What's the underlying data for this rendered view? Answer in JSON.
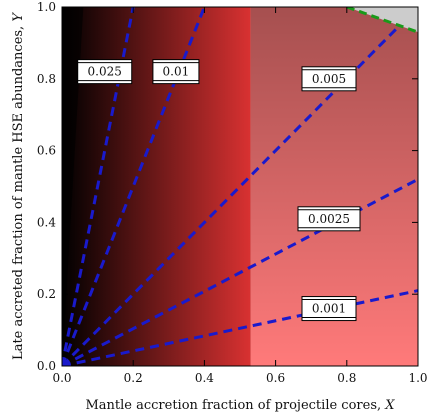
{
  "chart_data": {
    "type": "heatmap",
    "xlabel": "Mantle accretion fraction of projectile cores,",
    "xlabel_var": "X",
    "ylabel": "Late accreted fraction of mantle HSE abundances,",
    "ylabel_var": "Y",
    "xlim": [
      0.0,
      1.0
    ],
    "ylim": [
      0.0,
      1.0
    ],
    "x_ticks": [
      "0.0",
      "0.2",
      "0.4",
      "0.6",
      "0.8",
      "1.0"
    ],
    "y_ticks": [
      "0.0",
      "0.2",
      "0.4",
      "0.6",
      "0.8",
      "1.0"
    ],
    "shaded_region_x_start": 0.53,
    "contour_lines": [
      {
        "label": "0.025",
        "slope": 5.0
      },
      {
        "label": "0.01",
        "slope": 2.5
      },
      {
        "label": "0.005",
        "slope": 1.0
      },
      {
        "label": "0.0025",
        "slope": 0.52
      },
      {
        "label": "0.001",
        "slope": 0.21
      }
    ],
    "boundary_curve": {
      "style": "dashed",
      "color": "#1a9a1a",
      "points": [
        [
          0.8,
          1.0
        ],
        [
          0.9,
          0.965
        ],
        [
          1.0,
          0.93
        ]
      ]
    },
    "excluded_region_color": "#cccccc",
    "contour_color": "#1a1acc",
    "label_box_positions": [
      [
        0.12,
        0.82
      ],
      [
        0.32,
        0.82
      ],
      [
        0.75,
        0.8
      ],
      [
        0.75,
        0.41
      ],
      [
        0.75,
        0.16
      ]
    ]
  }
}
